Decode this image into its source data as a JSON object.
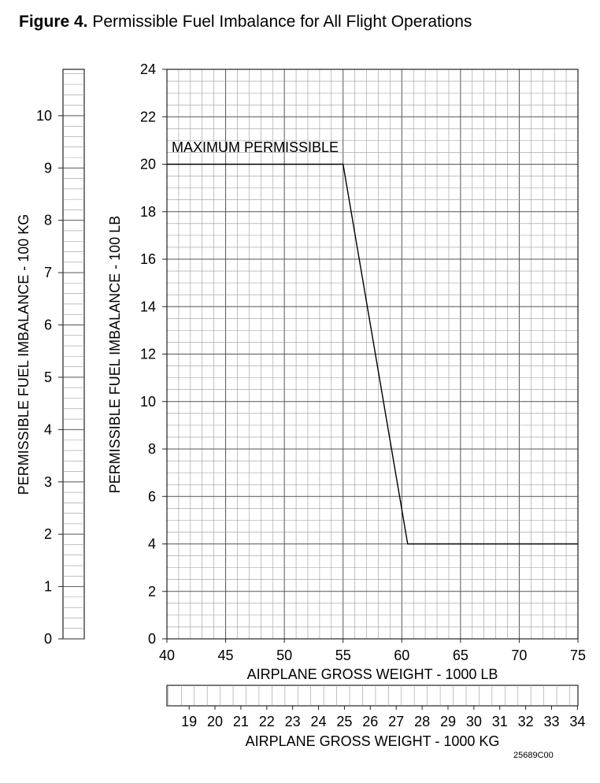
{
  "title": {
    "prefix": "Figure 4.",
    "text": "Permissible Fuel Imbalance for All Flight Operations"
  },
  "chart_data": {
    "type": "line",
    "title": "Figure 4. Permissible Fuel Imbalance for All Flight Operations",
    "xlabel": "AIRPLANE GROSS WEIGHT - 1000 LB",
    "xlabel_secondary": "AIRPLANE GROSS WEIGHT - 1000 KG",
    "ylabel": "PERMISSIBLE FUEL IMBALANCE - 100 LB",
    "ylabel_secondary": "PERMISSIBLE FUEL IMBALANCE - 100 KG",
    "xlim": [
      40,
      75
    ],
    "ylim": [
      0,
      24
    ],
    "x_ticks": [
      40,
      45,
      50,
      55,
      60,
      65,
      70,
      75
    ],
    "y_ticks": [
      0,
      2,
      4,
      6,
      8,
      10,
      12,
      14,
      16,
      18,
      20,
      22,
      24
    ],
    "kg_y_ticks": [
      0,
      1,
      2,
      3,
      4,
      5,
      6,
      7,
      8,
      9,
      10
    ],
    "kg_x_ticks": [
      19,
      20,
      21,
      22,
      23,
      24,
      25,
      26,
      27,
      28,
      29,
      30,
      31,
      32,
      33,
      34
    ],
    "grid": true,
    "series": [
      {
        "name": "MAXIMUM PERMISSIBLE",
        "x": [
          40,
          55,
          60.5,
          75
        ],
        "y": [
          20,
          20,
          4,
          4
        ]
      }
    ],
    "annotations": [
      {
        "text": "MAXIMUM PERMISSIBLE",
        "x": 40.3,
        "y": 20.6
      }
    ],
    "figure_id": "25689C00"
  }
}
